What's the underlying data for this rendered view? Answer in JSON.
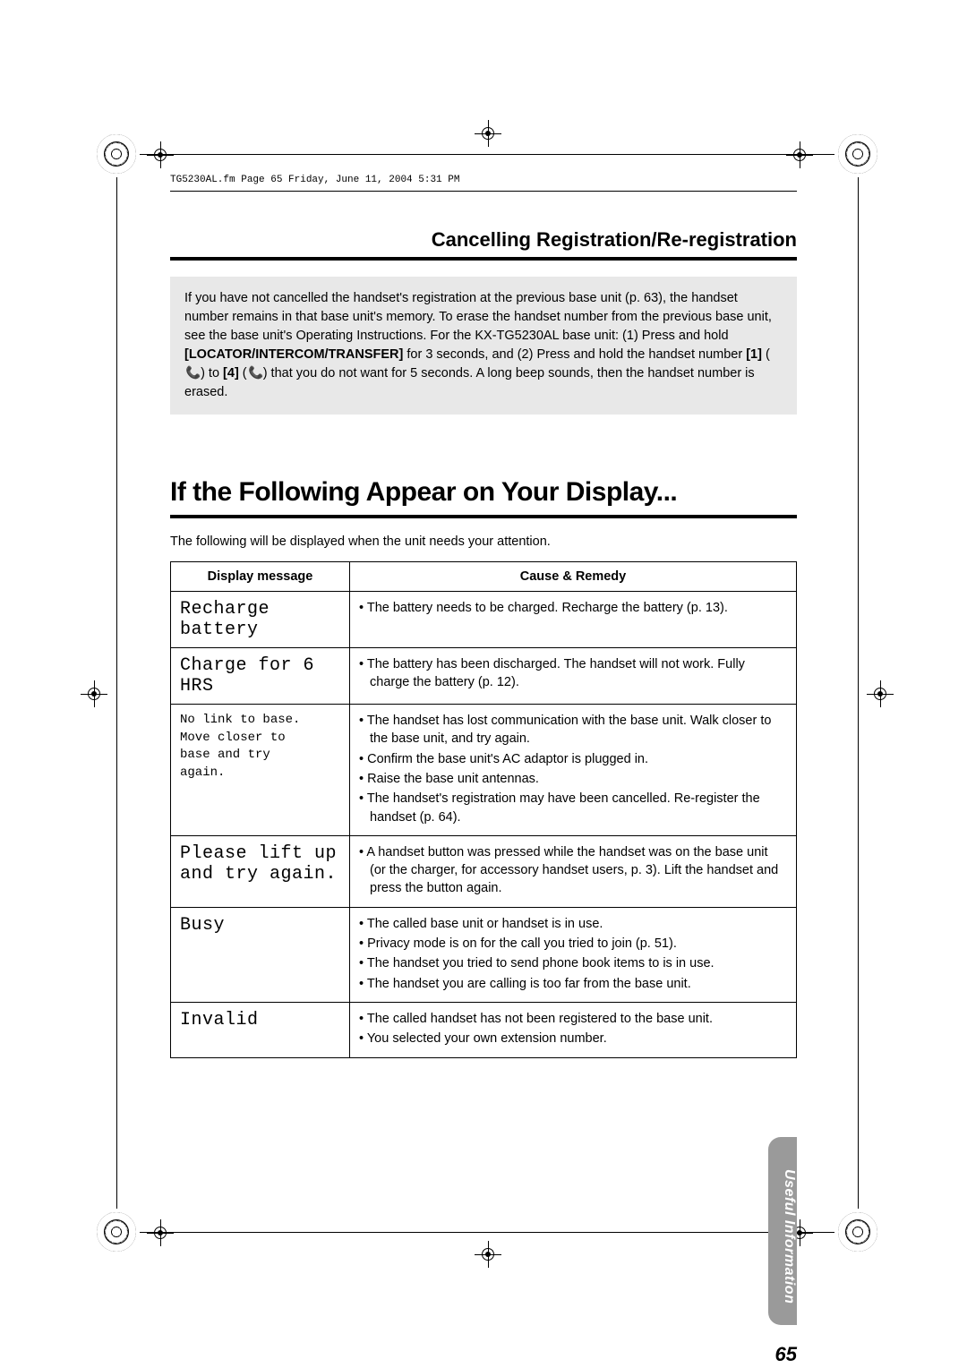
{
  "meta_header": "TG5230AL.fm  Page 65  Friday, June 11, 2004  5:31 PM",
  "section_title": "Cancelling Registration/Re-registration",
  "gray_box": {
    "p1": "If you have not cancelled the handset's registration at the previous base unit (p. 63), the handset number remains in that base unit's memory. To erase the handset number from the previous base unit, see the base unit's Operating Instructions. For the KX-TG5230AL base unit: (1) Press and hold ",
    "b1": "[LOCATOR/INTERCOM/TRANSFER]",
    "p2": " for 3 seconds, and (2) Press and hold the handset number ",
    "b2": "[1]",
    "p3": " (",
    "icon1": "📞",
    "p4": ") to ",
    "b3": "[4]",
    "p5": " (",
    "icon2": "📞",
    "p6": ") that you do not want for 5 seconds. A long beep sounds, then the handset number is erased."
  },
  "big_heading": "If the Following Appear on Your Display...",
  "intro_text": "The following will be displayed when the unit needs your attention.",
  "table_headers": {
    "col1": "Display message",
    "col2": "Cause & Remedy"
  },
  "rows": [
    {
      "msg_class": "lcd-font",
      "msg": "Recharge battery",
      "remedy": [
        "The battery needs to be charged. Recharge the battery (p. 13)."
      ]
    },
    {
      "msg_class": "lcd-font",
      "msg": "Charge for 6 HRS",
      "remedy": [
        "The battery has been discharged. The handset will not work. Fully charge the battery (p. 12)."
      ]
    },
    {
      "msg_class": "small-mono",
      "msg": "No link to base.\nMove closer to\nbase and try\nagain.",
      "remedy": [
        "The handset has lost communication with the base unit. Walk closer to the base unit, and try again.",
        "Confirm the base unit's AC adaptor is plugged in.",
        "Raise the base unit antennas.",
        "The handset's registration may have been cancelled. Re-register the handset (p. 64)."
      ]
    },
    {
      "msg_class": "lcd-font",
      "msg": "Please lift up\nand try again.",
      "remedy": [
        "A handset button was pressed while the handset was on the base unit (or the charger, for accessory handset users, p. 3). Lift the handset and press the button again."
      ]
    },
    {
      "msg_class": "lcd-font",
      "msg": "Busy",
      "remedy": [
        "The called base unit or handset is in use.",
        "Privacy mode is on for the call you tried to join (p. 51).",
        "The handset you tried to send phone book items to is in use.",
        "The handset you are calling is too far from the base unit."
      ]
    },
    {
      "msg_class": "lcd-font",
      "msg": "Invalid",
      "remedy": [
        "The called handset has not been registered to the base unit.",
        "You selected your own extension number."
      ]
    }
  ],
  "side_tab": "Useful Information",
  "page_number": "65",
  "colors": {
    "gray_box_bg": "#e8e8e8",
    "side_tab_bg": "#9a9a9a",
    "text": "#000000",
    "bg": "#ffffff"
  }
}
